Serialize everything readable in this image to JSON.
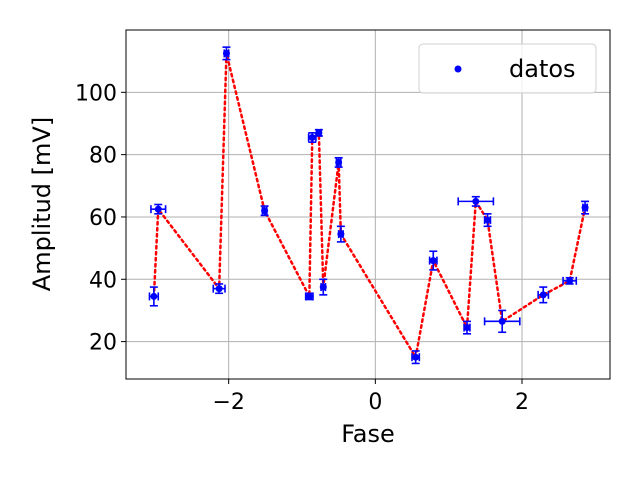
{
  "chart_data": {
    "type": "scatter",
    "title": "",
    "xlabel": "Fase",
    "ylabel": "Amplitud [mV]",
    "xlim": [
      -3.4,
      3.2
    ],
    "ylim": [
      8,
      120
    ],
    "xticks": [
      -2,
      0,
      2
    ],
    "xtick_labels": [
      "−2",
      "0",
      "2"
    ],
    "yticks": [
      20,
      40,
      60,
      80,
      100
    ],
    "ytick_labels": [
      "20",
      "40",
      "60",
      "80",
      "100"
    ],
    "grid": true,
    "legend": {
      "placement": "top-right",
      "entries": [
        "datos"
      ]
    },
    "colors": {
      "points": "#0000ff",
      "line": "#ff0000",
      "errorbars": "#0000ff",
      "grid": "#b0b0b0"
    },
    "series": [
      {
        "name": "datos",
        "points": [
          {
            "x": -3.02,
            "y": 34.5,
            "xerr": 0.06,
            "yerr": 3.0
          },
          {
            "x": -2.96,
            "y": 62.5,
            "xerr": 0.1,
            "yerr": 1.5
          },
          {
            "x": -2.13,
            "y": 37.0,
            "xerr": 0.08,
            "yerr": 1.5
          },
          {
            "x": -2.03,
            "y": 112.5,
            "xerr": 0.03,
            "yerr": 2.0
          },
          {
            "x": -1.51,
            "y": 62.0,
            "xerr": 0.03,
            "yerr": 1.5
          },
          {
            "x": -0.9,
            "y": 34.5,
            "xerr": 0.05,
            "yerr": 1.0
          },
          {
            "x": -0.86,
            "y": 85.5,
            "xerr": 0.05,
            "yerr": 1.5
          },
          {
            "x": -0.77,
            "y": 87.0,
            "xerr": 0.03,
            "yerr": 1.0
          },
          {
            "x": -0.71,
            "y": 37.5,
            "xerr": 0.03,
            "yerr": 2.5
          },
          {
            "x": -0.5,
            "y": 77.5,
            "xerr": 0.03,
            "yerr": 1.5
          },
          {
            "x": -0.47,
            "y": 54.5,
            "xerr": 0.03,
            "yerr": 2.5
          },
          {
            "x": 0.55,
            "y": 15.0,
            "xerr": 0.05,
            "yerr": 2.0
          },
          {
            "x": 0.79,
            "y": 46.0,
            "xerr": 0.05,
            "yerr": 3.0
          },
          {
            "x": 1.25,
            "y": 24.5,
            "xerr": 0.04,
            "yerr": 2.0
          },
          {
            "x": 1.37,
            "y": 65.0,
            "xerr": 0.24,
            "yerr": 1.5
          },
          {
            "x": 1.53,
            "y": 59.0,
            "xerr": 0.04,
            "yerr": 2.0
          },
          {
            "x": 1.73,
            "y": 26.5,
            "xerr": 0.24,
            "yerr": 3.5
          },
          {
            "x": 2.29,
            "y": 35.0,
            "xerr": 0.07,
            "yerr": 2.5
          },
          {
            "x": 2.65,
            "y": 39.5,
            "xerr": 0.09,
            "yerr": 1.0
          },
          {
            "x": 2.86,
            "y": 63.0,
            "xerr": 0.03,
            "yerr": 2.0
          }
        ]
      }
    ]
  }
}
